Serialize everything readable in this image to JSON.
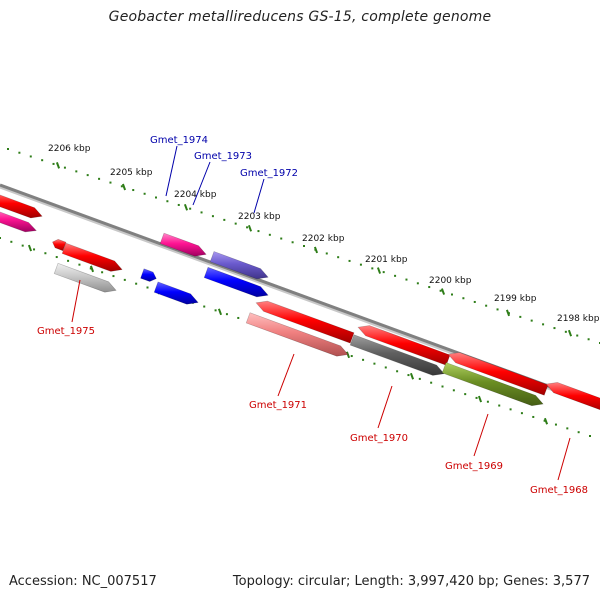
{
  "title": "Geobacter metallireducens GS-15, complete genome",
  "accession": "Accession: NC_007517",
  "summary": "Topology: circular; Length: 3,997,420 bp; Genes: 3,577",
  "colors": {
    "backbone": "#808080",
    "tick": "#2e7d18",
    "label_plus": "#0000aa",
    "label_minus": "#cc0000"
  },
  "ticks": [
    "2206 kbp",
    "2205 kbp",
    "2204 kbp",
    "2203 kbp",
    "2202 kbp",
    "2201 kbp",
    "2200 kbp",
    "2199 kbp",
    "2198 kbp"
  ],
  "gene_labels": [
    "Gmet_1974",
    "Gmet_1973",
    "Gmet_1972",
    "Gmet_1975",
    "Gmet_1971",
    "Gmet_1970",
    "Gmet_1969",
    "Gmet_1968"
  ]
}
